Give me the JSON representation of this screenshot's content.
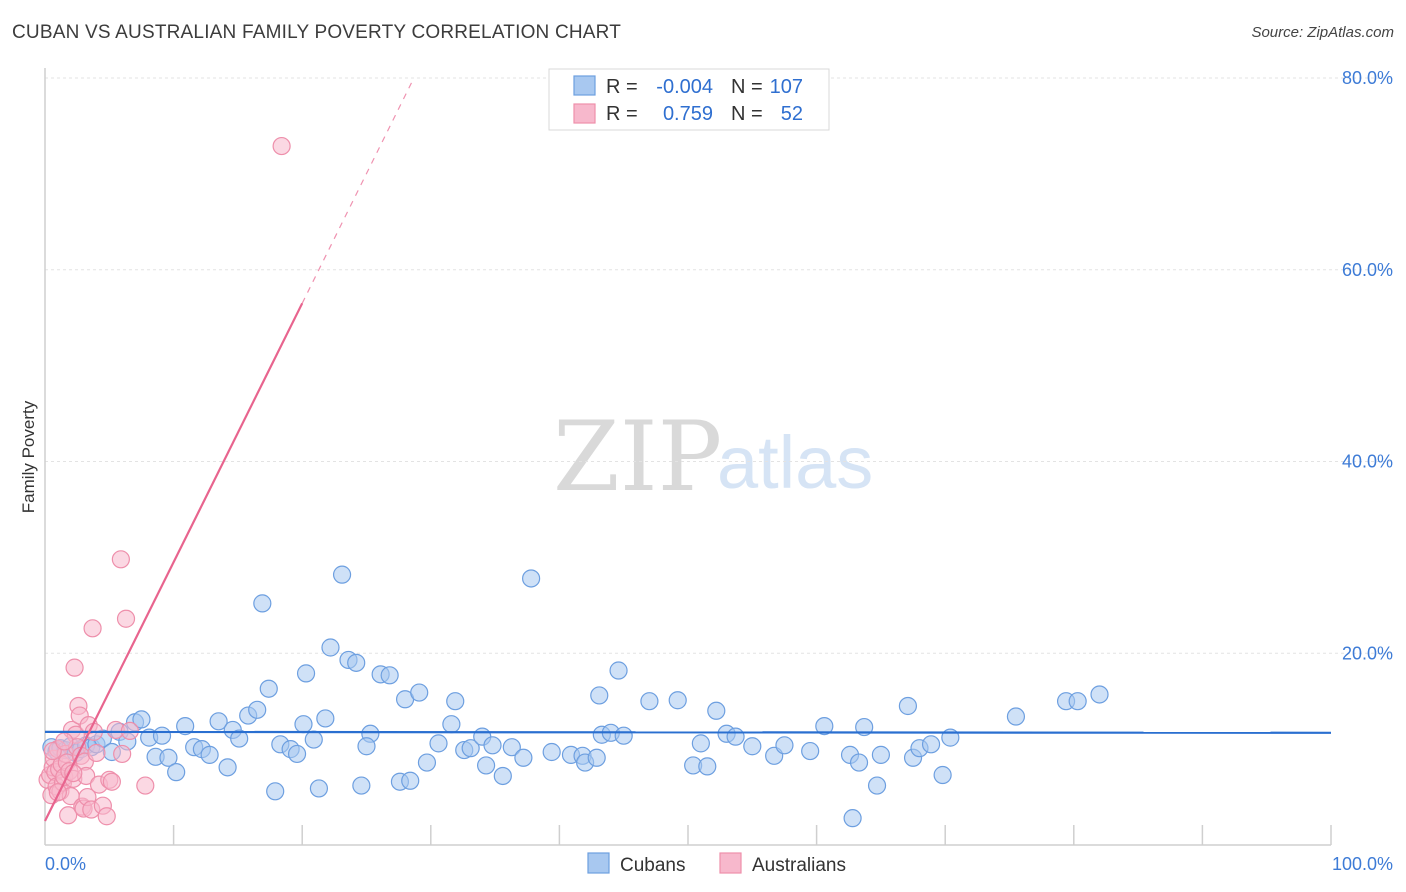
{
  "title": "CUBAN VS AUSTRALIAN FAMILY POVERTY CORRELATION CHART",
  "source": "Source: ZipAtlas.com",
  "watermark": {
    "zip": "ZIP",
    "atlas": "atlas"
  },
  "legend": {
    "r_label": "R =",
    "n_label": "N =",
    "rows": [
      {
        "r": "-0.004",
        "n": "107"
      },
      {
        "r": "0.759",
        "n": "52"
      }
    ]
  },
  "bottom_legend": [
    "Cubans",
    "Australians"
  ],
  "colors": {
    "cubans_fill": "#a8c8f0",
    "cubans_stroke": "#6d9fe0",
    "cubans_line": "#2a6fd0",
    "australians_fill": "#f7b8cc",
    "australians_stroke": "#ee8fab",
    "australians_line": "#e8648e",
    "axis_label": "#3d7bd6",
    "grid": "#e3e3e3"
  },
  "chart_data": {
    "type": "scatter",
    "title": "CUBAN VS AUSTRALIAN FAMILY POVERTY CORRELATION CHART",
    "xlabel": "",
    "ylabel": "Family Poverty",
    "xlim": [
      0,
      100
    ],
    "ylim": [
      0,
      80
    ],
    "x_tick_labels": [
      "0.0%",
      "100.0%"
    ],
    "y_ticks": [
      20,
      40,
      60,
      80
    ],
    "y_tick_labels": [
      "20.0%",
      "40.0%",
      "60.0%",
      "80.0%"
    ],
    "series": [
      {
        "name": "Cubans",
        "r": -0.004,
        "n": 107,
        "trend": {
          "x": [
            0,
            100
          ],
          "y": [
            11.8,
            11.7
          ]
        },
        "points": [
          [
            0.5,
            10.2
          ],
          [
            0.9,
            9.8
          ],
          [
            1.2,
            10.1
          ],
          [
            1.6,
            9.9
          ],
          [
            2.0,
            10.3
          ],
          [
            2.4,
            9.6
          ],
          [
            2.8,
            10.0
          ],
          [
            3.2,
            10.4
          ],
          [
            3.6,
            10.2
          ],
          [
            4.0,
            10.5
          ],
          [
            4.5,
            11.1
          ],
          [
            5.2,
            9.7
          ],
          [
            5.8,
            11.8
          ],
          [
            6.4,
            10.8
          ],
          [
            7.0,
            12.8
          ],
          [
            7.5,
            13.1
          ],
          [
            8.1,
            11.2
          ],
          [
            8.6,
            9.2
          ],
          [
            9.1,
            11.4
          ],
          [
            9.6,
            9.1
          ],
          [
            10.2,
            7.6
          ],
          [
            10.9,
            12.4
          ],
          [
            11.6,
            10.2
          ],
          [
            12.2,
            10.0
          ],
          [
            12.8,
            9.4
          ],
          [
            13.5,
            12.9
          ],
          [
            14.2,
            8.1
          ],
          [
            14.6,
            12.0
          ],
          [
            15.1,
            11.1
          ],
          [
            15.8,
            13.5
          ],
          [
            16.5,
            14.1
          ],
          [
            16.9,
            25.2
          ],
          [
            17.4,
            16.3
          ],
          [
            17.9,
            5.6
          ],
          [
            18.3,
            10.5
          ],
          [
            19.1,
            10.0
          ],
          [
            19.6,
            9.5
          ],
          [
            20.1,
            12.6
          ],
          [
            20.3,
            17.9
          ],
          [
            20.9,
            11.0
          ],
          [
            21.3,
            5.9
          ],
          [
            21.8,
            13.2
          ],
          [
            22.2,
            20.6
          ],
          [
            23.1,
            28.2
          ],
          [
            23.6,
            19.3
          ],
          [
            24.2,
            19.0
          ],
          [
            24.6,
            6.2
          ],
          [
            25.3,
            11.6
          ],
          [
            25.0,
            10.3
          ],
          [
            26.1,
            17.8
          ],
          [
            26.8,
            17.7
          ],
          [
            27.6,
            6.6
          ],
          [
            28.0,
            15.2
          ],
          [
            28.4,
            6.7
          ],
          [
            29.1,
            15.9
          ],
          [
            29.7,
            8.6
          ],
          [
            30.6,
            10.6
          ],
          [
            31.6,
            12.6
          ],
          [
            31.9,
            15.0
          ],
          [
            32.6,
            9.9
          ],
          [
            33.1,
            10.1
          ],
          [
            34.0,
            11.3
          ],
          [
            34.3,
            8.3
          ],
          [
            34.8,
            10.4
          ],
          [
            35.6,
            7.2
          ],
          [
            36.3,
            10.2
          ],
          [
            37.2,
            9.1
          ],
          [
            37.8,
            27.8
          ],
          [
            39.4,
            9.7
          ],
          [
            40.9,
            9.4
          ],
          [
            41.8,
            9.3
          ],
          [
            42.0,
            8.6
          ],
          [
            42.9,
            9.1
          ],
          [
            43.3,
            11.5
          ],
          [
            44.0,
            11.7
          ],
          [
            43.1,
            15.6
          ],
          [
            45.0,
            11.4
          ],
          [
            44.6,
            18.2
          ],
          [
            47.0,
            15.0
          ],
          [
            49.2,
            15.1
          ],
          [
            50.4,
            8.3
          ],
          [
            51.0,
            10.6
          ],
          [
            51.5,
            8.2
          ],
          [
            52.2,
            14.0
          ],
          [
            53.0,
            11.6
          ],
          [
            53.7,
            11.3
          ],
          [
            55.0,
            10.3
          ],
          [
            56.7,
            9.3
          ],
          [
            60.6,
            12.4
          ],
          [
            62.6,
            9.4
          ],
          [
            62.8,
            2.8
          ],
          [
            63.3,
            8.6
          ],
          [
            63.7,
            12.3
          ],
          [
            64.7,
            6.2
          ],
          [
            65.0,
            9.4
          ],
          [
            67.1,
            14.5
          ],
          [
            67.5,
            9.1
          ],
          [
            68.0,
            10.1
          ],
          [
            68.9,
            10.5
          ],
          [
            69.8,
            7.3
          ],
          [
            70.4,
            11.2
          ],
          [
            75.5,
            13.4
          ],
          [
            79.4,
            15.0
          ],
          [
            80.3,
            15.0
          ],
          [
            82.0,
            15.7
          ],
          [
            59.5,
            9.8
          ],
          [
            57.5,
            10.4
          ]
        ]
      },
      {
        "name": "Australians",
        "r": 0.759,
        "n": 52,
        "trend": {
          "x": [
            0,
            20
          ],
          "y": [
            2.5,
            56.5
          ]
        },
        "trend_extended": {
          "x": [
            20,
            28.5
          ],
          "y": [
            56.5,
            79.5
          ]
        },
        "points": [
          [
            0.2,
            6.8
          ],
          [
            0.4,
            7.3
          ],
          [
            0.5,
            5.2
          ],
          [
            0.6,
            8.1
          ],
          [
            0.7,
            9.0
          ],
          [
            0.8,
            7.6
          ],
          [
            0.9,
            6.1
          ],
          [
            1.0,
            10.0
          ],
          [
            1.1,
            7.9
          ],
          [
            1.2,
            5.6
          ],
          [
            1.3,
            8.4
          ],
          [
            1.4,
            6.5
          ],
          [
            1.5,
            7.1
          ],
          [
            1.6,
            9.5
          ],
          [
            1.7,
            8.6
          ],
          [
            1.8,
            3.1
          ],
          [
            1.9,
            7.7
          ],
          [
            2.0,
            5.1
          ],
          [
            2.1,
            12.0
          ],
          [
            2.2,
            6.9
          ],
          [
            2.3,
            18.5
          ],
          [
            2.4,
            11.5
          ],
          [
            2.5,
            10.2
          ],
          [
            2.6,
            14.5
          ],
          [
            2.7,
            13.5
          ],
          [
            2.8,
            9.3
          ],
          [
            2.9,
            4.0
          ],
          [
            3.0,
            3.8
          ],
          [
            3.1,
            8.7
          ],
          [
            3.2,
            7.2
          ],
          [
            3.3,
            5.0
          ],
          [
            3.4,
            12.5
          ],
          [
            3.6,
            3.7
          ],
          [
            3.7,
            22.6
          ],
          [
            3.8,
            11.8
          ],
          [
            4.0,
            9.6
          ],
          [
            4.2,
            6.3
          ],
          [
            4.5,
            4.1
          ],
          [
            4.8,
            3.0
          ],
          [
            5.0,
            6.8
          ],
          [
            5.2,
            6.6
          ],
          [
            5.5,
            12.0
          ],
          [
            5.9,
            29.8
          ],
          [
            6.0,
            9.5
          ],
          [
            6.3,
            23.6
          ],
          [
            6.6,
            11.9
          ],
          [
            7.8,
            6.2
          ],
          [
            18.4,
            72.9
          ],
          [
            1.0,
            5.5
          ],
          [
            0.6,
            9.8
          ],
          [
            1.5,
            10.8
          ],
          [
            2.2,
            7.5
          ]
        ]
      }
    ]
  }
}
